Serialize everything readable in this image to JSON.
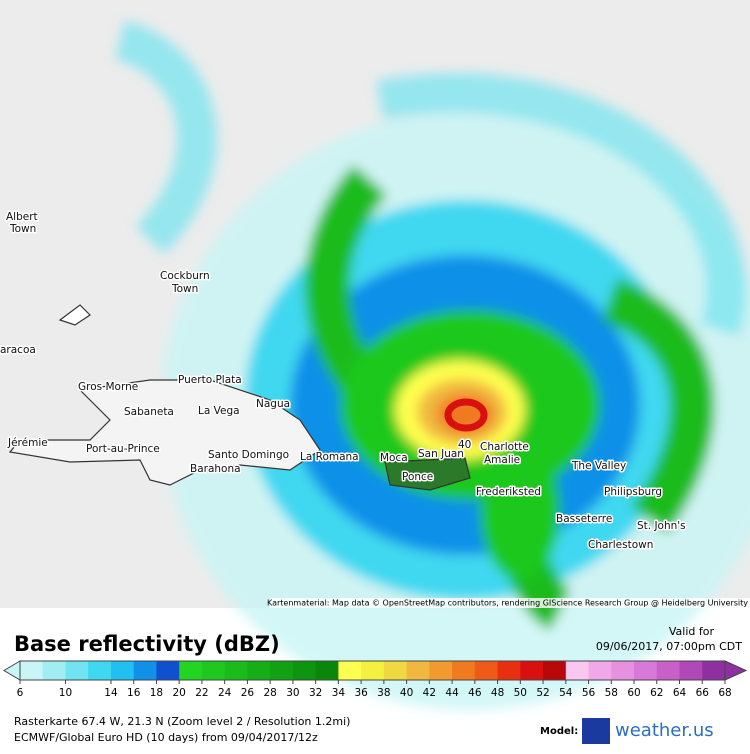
{
  "map": {
    "labels": [
      "Albert",
      "Town",
      "Cockburn",
      "Town",
      "aracoa",
      "Gros Morne",
      "Puerto Plata",
      "Sabaneta",
      "La Vega",
      "Nagua",
      "Jérémie",
      "Port-au-Prince",
      "Santo Domingo",
      "Barahona",
      "La Romana",
      "Moca",
      "San Juan",
      "40",
      "Charlotte",
      "Amalie",
      "Ponce",
      "Frederiksted",
      "The Valley",
      "Philipsburg",
      "Basseterre",
      "St. John's",
      "Charlestown"
    ],
    "attribution": "Kartenmaterial: Map data © OpenStreetMap contributors, rendering GIScience Research Group @ Heidelberg University"
  },
  "legend": {
    "title": "Base reflectivity (dBZ)",
    "valid_label": "Valid for",
    "valid_time": "09/06/2017, 07:00pm CDT",
    "ticks": [
      6,
      10,
      14,
      16,
      18,
      20,
      22,
      24,
      26,
      28,
      30,
      32,
      34,
      36,
      38,
      40,
      42,
      44,
      46,
      48,
      50,
      52,
      54,
      56,
      58,
      60,
      62,
      64,
      66,
      68
    ],
    "colors": [
      "#c8f5f5",
      "#a0eef2",
      "#70e4f0",
      "#40d8f0",
      "#20c0f0",
      "#1090e8",
      "#1050d0",
      "#22d522",
      "#1ec81e",
      "#1abb1a",
      "#16ae16",
      "#12a112",
      "#0e940e",
      "#0a870a",
      "#ffff50",
      "#f5f040",
      "#f0d840",
      "#f0b840",
      "#f09a30",
      "#f07a20",
      "#f05a18",
      "#e83010",
      "#d81010",
      "#b80808",
      "#f8c8f0",
      "#f0a8e8",
      "#e890e0",
      "#d878d8",
      "#c860c8",
      "#b048b8",
      "#9030a0"
    ]
  },
  "footer": {
    "line1": "Rasterkarte 67.4 W, 21.3 N (Zoom level 2 / Resolution 1.2mi)",
    "line2": "ECMWF/Global Euro HD (10 days) from 09/04/2017/12z",
    "model_label": "Model:",
    "brand": "weather.us"
  }
}
